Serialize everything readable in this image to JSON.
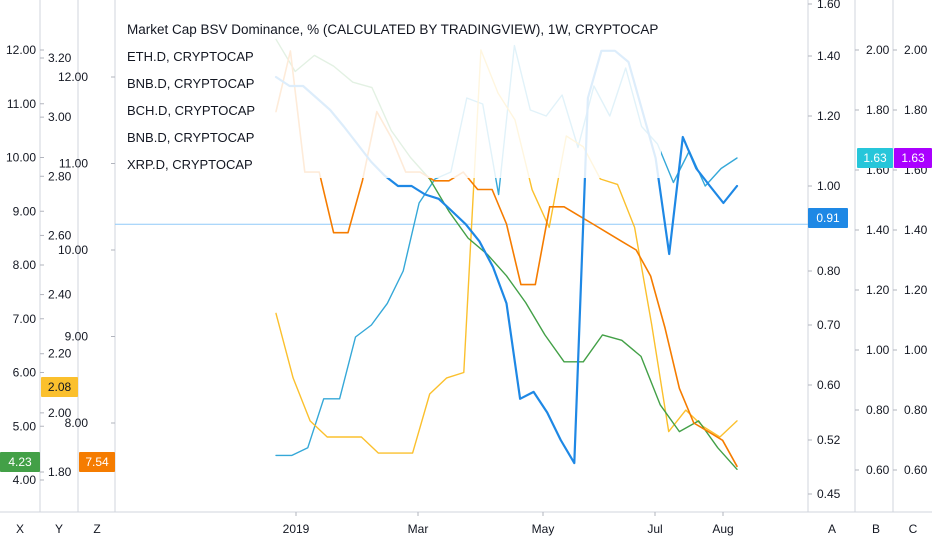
{
  "chart_data": {
    "type": "line",
    "title": "Market Cap BSV Dominance, % (CALCULATED BY TRADINGVIEW), 1W, CRYPTOCAP",
    "legend": [
      "ETH.D, CRYPTOCAP",
      "BNB.D, CRYPTOCAP",
      "BCH.D, CRYPTOCAP",
      "BNB.D, CRYPTOCAP",
      "XRP.D, CRYPTOCAP"
    ],
    "x_ticks": [
      "2019",
      "Mar",
      "May",
      "Jul",
      "Aug"
    ],
    "axes": {
      "X": {
        "label": "X",
        "ticks": [
          "12.00",
          "11.00",
          "10.00",
          "9.00",
          "8.00",
          "7.00",
          "6.00",
          "5.00",
          "4.00"
        ],
        "badge": "4.23",
        "badge_color": "#43a047"
      },
      "Y": {
        "label": "Y",
        "ticks": [
          "3.20",
          "3.00",
          "2.80",
          "2.60",
          "2.40",
          "2.20",
          "2.00",
          "1.80"
        ],
        "badge": "2.08",
        "badge_color": "#fbc02d"
      },
      "Z": {
        "label": "Z",
        "ticks": [
          "12.00",
          "11.00",
          "10.00",
          "9.00",
          "8.00"
        ],
        "badge": "7.54",
        "badge_color": "#f57c00"
      },
      "A": {
        "label": "A",
        "ticks": [
          "1.60",
          "1.40",
          "1.20",
          "1.00",
          "0.80",
          "0.70",
          "0.60",
          "0.52",
          "0.45"
        ],
        "badge": "0.91",
        "badge_color": "#1e88e5"
      },
      "B": {
        "label": "B",
        "ticks": [
          "2.00",
          "1.80",
          "1.60",
          "1.40",
          "1.20",
          "1.00",
          "0.80",
          "0.60"
        ],
        "badge": "1.63",
        "badge_color": "#26c6da"
      },
      "C": {
        "label": "C",
        "ticks": [
          "2.00",
          "1.80",
          "1.60",
          "1.40",
          "1.20",
          "1.00",
          "0.80",
          "0.60"
        ],
        "badge": "1.63",
        "badge_color": "#aa00ff"
      }
    },
    "series": [
      {
        "name": "Market Cap BSV Dominance",
        "axis": "A",
        "color": "#1e88e5",
        "width": 2.2,
        "values": [
          1.33,
          1.3,
          1.3,
          1.26,
          1.22,
          1.17,
          1.12,
          1.07,
          1.03,
          1.0,
          1.0,
          0.98,
          0.97,
          0.94,
          0.91,
          0.87,
          0.81,
          0.74,
          0.58,
          0.59,
          0.56,
          0.52,
          0.49,
          1.26,
          1.42,
          1.42,
          1.38,
          1.22,
          1.08,
          0.84,
          1.14,
          1.05,
          1.0,
          0.96,
          1.0
        ]
      },
      {
        "name": "ETH.D, CRYPTOCAP",
        "axis": "Z",
        "color": "#f57c00",
        "width": 1.6,
        "values": [
          11.6,
          12.3,
          10.9,
          10.9,
          10.2,
          10.2,
          10.8,
          11.6,
          11.3,
          10.9,
          10.9,
          10.8,
          10.8,
          10.9,
          10.7,
          10.7,
          10.3,
          9.6,
          9.6,
          10.5,
          10.5,
          10.4,
          10.3,
          10.2,
          10.1,
          10.0,
          9.7,
          9.1,
          8.4,
          8.0,
          7.9,
          7.8,
          7.5
        ]
      },
      {
        "name": "BNB.D, CRYPTOCAP",
        "axis": "X",
        "color": "#fbc02d",
        "width": 1.4,
        "values": [
          7.1,
          5.9,
          5.1,
          4.8,
          4.8,
          4.8,
          4.5,
          4.5,
          4.5,
          5.6,
          5.9,
          6.0,
          12.0,
          11.2,
          10.7,
          9.4,
          8.7,
          10.4,
          10.2,
          9.6,
          9.5,
          8.7,
          6.9,
          4.9,
          5.3,
          5.0,
          4.8,
          5.1
        ]
      },
      {
        "name": "BCH.D, CRYPTOCAP",
        "axis": "X",
        "color": "#43a047",
        "width": 1.4,
        "values": [
          12.2,
          11.6,
          11.9,
          11.7,
          11.4,
          11.3,
          10.5,
          10.0,
          9.6,
          9.0,
          8.5,
          8.2,
          7.8,
          7.3,
          6.7,
          6.2,
          6.2,
          6.7,
          6.6,
          6.3,
          5.4,
          4.9,
          5.1,
          4.6,
          4.2
        ]
      },
      {
        "name": "XRP.D, CRYPTOCAP",
        "axis": "A",
        "color": "#35a8d8",
        "width": 1.4,
        "values": [
          0.5,
          0.5,
          0.51,
          0.58,
          0.58,
          0.68,
          0.7,
          0.74,
          0.8,
          0.96,
          1.02,
          1.04,
          1.26,
          1.24,
          0.98,
          1.44,
          1.22,
          1.2,
          1.27,
          1.11,
          1.3,
          1.2,
          1.36,
          1.17,
          1.12,
          1.01,
          1.1,
          1.0,
          1.05,
          1.08
        ]
      }
    ]
  }
}
